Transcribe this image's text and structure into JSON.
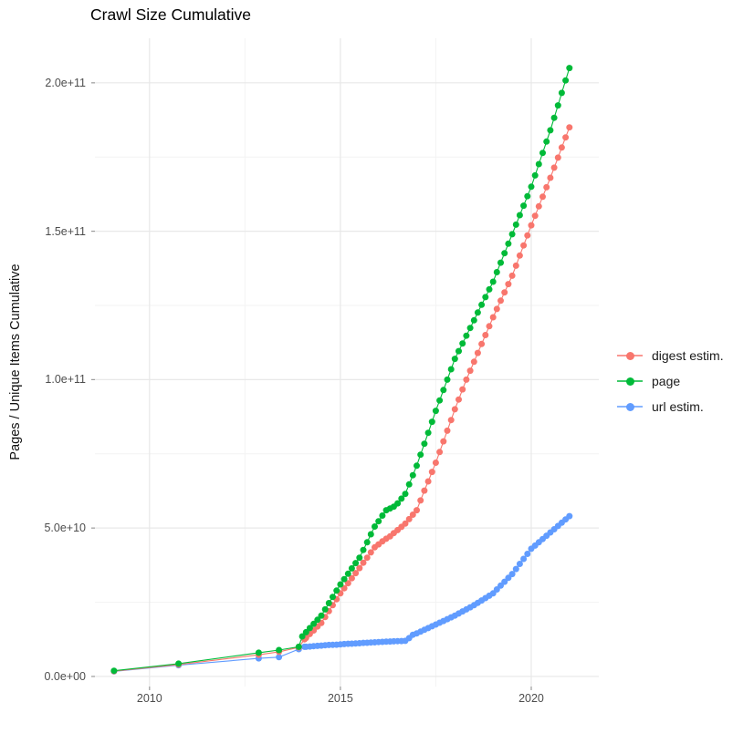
{
  "title": "Crawl Size Cumulative",
  "y_axis_label": "Pages / Unique Items Cumulative",
  "colors": {
    "digest": "#F8766D",
    "page": "#00BA38",
    "url": "#619CFF",
    "grid_major": "#e8e8e8",
    "grid_minor": "#f3f3f3",
    "tick_mark": "#9a9a9a",
    "tick_text": "#4d4d4d",
    "title_text": "#000000"
  },
  "legend": {
    "items": [
      {
        "label": "digest estim.",
        "color": "#F8766D"
      },
      {
        "label": "page",
        "color": "#00BA38"
      },
      {
        "label": "url estim.",
        "color": "#619CFF"
      }
    ]
  },
  "chart_data": {
    "type": "line",
    "title": "Crawl Size Cumulative",
    "xlabel": "",
    "ylabel": "Pages / Unique Items Cumulative",
    "legend_position": "right",
    "grid": true,
    "value_scale": 1000000000.0,
    "xlim": [
      2008.57,
      2021.77
    ],
    "ylim_e9": [
      -3.4,
      215
    ],
    "x_ticks": [
      {
        "value": 2010,
        "label": "2010"
      },
      {
        "value": 2015,
        "label": "2015"
      },
      {
        "value": 2020,
        "label": "2020"
      }
    ],
    "y_ticks": [
      {
        "value_e9": 0,
        "label": "0.0e+00"
      },
      {
        "value_e9": 50,
        "label": "5.0e+10"
      },
      {
        "value_e9": 100,
        "label": "1.0e+11"
      },
      {
        "value_e9": 150,
        "label": "1.5e+11"
      },
      {
        "value_e9": 200,
        "label": "2.0e+11"
      }
    ],
    "x_minor": [
      2012.5,
      2017.5
    ],
    "y_minor_e9": [
      25,
      75,
      125,
      175
    ],
    "series": [
      {
        "name": "digest estim.",
        "color": "#F8766D",
        "points": [
          [
            2009.07,
            1.8
          ],
          [
            2010.76,
            4
          ],
          [
            2012.86,
            7.3
          ],
          [
            2013.39,
            8.3
          ],
          [
            2013.91,
            9.8
          ],
          [
            2014.06,
            12.5
          ],
          [
            2014.1,
            13
          ],
          [
            2014.2,
            14.3
          ],
          [
            2014.3,
            15.5
          ],
          [
            2014.4,
            16.8
          ],
          [
            2014.5,
            18
          ],
          [
            2014.6,
            20
          ],
          [
            2014.7,
            22
          ],
          [
            2014.8,
            24
          ],
          [
            2014.9,
            26
          ],
          [
            2015,
            28
          ],
          [
            2015.1,
            29.7
          ],
          [
            2015.2,
            31.4
          ],
          [
            2015.3,
            33.1
          ],
          [
            2015.4,
            34.8
          ],
          [
            2015.5,
            36.5
          ],
          [
            2015.6,
            38.3
          ],
          [
            2015.7,
            40
          ],
          [
            2015.8,
            41.8
          ],
          [
            2015.9,
            43.5
          ],
          [
            2016,
            44.5
          ],
          [
            2016.1,
            45.5
          ],
          [
            2016.2,
            46.4
          ],
          [
            2016.3,
            47.2
          ],
          [
            2016.4,
            48.3
          ],
          [
            2016.5,
            49.3
          ],
          [
            2016.6,
            50.4
          ],
          [
            2016.7,
            51.5
          ],
          [
            2016.8,
            53
          ],
          [
            2016.9,
            54.5
          ],
          [
            2017,
            56
          ],
          [
            2017.1,
            59.3
          ],
          [
            2017.2,
            62.6
          ],
          [
            2017.3,
            65.7
          ],
          [
            2017.4,
            68.9
          ],
          [
            2017.5,
            72
          ],
          [
            2017.6,
            75.6
          ],
          [
            2017.7,
            79.2
          ],
          [
            2017.8,
            82.8
          ],
          [
            2017.9,
            86.4
          ],
          [
            2018,
            90
          ],
          [
            2018.1,
            93.3
          ],
          [
            2018.2,
            96.7
          ],
          [
            2018.3,
            100
          ],
          [
            2018.4,
            103
          ],
          [
            2018.5,
            106
          ],
          [
            2018.6,
            109
          ],
          [
            2018.7,
            112
          ],
          [
            2018.8,
            115
          ],
          [
            2018.9,
            118
          ],
          [
            2019,
            121
          ],
          [
            2019.1,
            123.8
          ],
          [
            2019.2,
            126.6
          ],
          [
            2019.3,
            129.4
          ],
          [
            2019.4,
            132.2
          ],
          [
            2019.5,
            135
          ],
          [
            2019.6,
            138.4
          ],
          [
            2019.7,
            141.8
          ],
          [
            2019.8,
            145.2
          ],
          [
            2019.9,
            148.6
          ],
          [
            2020,
            152
          ],
          [
            2020.1,
            155.2
          ],
          [
            2020.2,
            158.4
          ],
          [
            2020.3,
            161.6
          ],
          [
            2020.4,
            164.8
          ],
          [
            2020.5,
            168
          ],
          [
            2020.6,
            171.4
          ],
          [
            2020.7,
            174.8
          ],
          [
            2020.8,
            178.2
          ],
          [
            2020.9,
            181.6
          ],
          [
            2021,
            185
          ]
        ]
      },
      {
        "name": "page",
        "color": "#00BA38",
        "points": [
          [
            2009.07,
            1.9
          ],
          [
            2010.76,
            4.3
          ],
          [
            2012.86,
            8
          ],
          [
            2013.39,
            8.9
          ],
          [
            2013.91,
            10
          ],
          [
            2014,
            13.5
          ],
          [
            2014.1,
            14.9
          ],
          [
            2014.2,
            16.3
          ],
          [
            2014.3,
            17.7
          ],
          [
            2014.4,
            19.1
          ],
          [
            2014.5,
            20.5
          ],
          [
            2014.6,
            22.6
          ],
          [
            2014.7,
            24.7
          ],
          [
            2014.8,
            26.8
          ],
          [
            2014.9,
            28.9
          ],
          [
            2015,
            31
          ],
          [
            2015.1,
            32.8
          ],
          [
            2015.2,
            34.6
          ],
          [
            2015.3,
            36.4
          ],
          [
            2015.4,
            38.2
          ],
          [
            2015.5,
            40
          ],
          [
            2015.6,
            42.6
          ],
          [
            2015.7,
            45.2
          ],
          [
            2015.8,
            47.9
          ],
          [
            2015.9,
            50.5
          ],
          [
            2016,
            52.3
          ],
          [
            2016.1,
            54.2
          ],
          [
            2016.2,
            56
          ],
          [
            2016.3,
            56.6
          ],
          [
            2016.4,
            57.2
          ],
          [
            2016.5,
            58.3
          ],
          [
            2016.6,
            59.9
          ],
          [
            2016.7,
            61.5
          ],
          [
            2016.8,
            64.7
          ],
          [
            2016.9,
            67.8
          ],
          [
            2017,
            71
          ],
          [
            2017.1,
            74.7
          ],
          [
            2017.2,
            78.4
          ],
          [
            2017.3,
            82.1
          ],
          [
            2017.4,
            85.8
          ],
          [
            2017.5,
            89.5
          ],
          [
            2017.6,
            93
          ],
          [
            2017.7,
            96.5
          ],
          [
            2017.8,
            100
          ],
          [
            2017.9,
            103.5
          ],
          [
            2018,
            107
          ],
          [
            2018.1,
            109.6
          ],
          [
            2018.2,
            112.2
          ],
          [
            2018.3,
            114.8
          ],
          [
            2018.4,
            117.4
          ],
          [
            2018.5,
            120
          ],
          [
            2018.6,
            122.6
          ],
          [
            2018.7,
            125.2
          ],
          [
            2018.8,
            127.8
          ],
          [
            2018.9,
            130.4
          ],
          [
            2019,
            133
          ],
          [
            2019.1,
            136.2
          ],
          [
            2019.2,
            139.4
          ],
          [
            2019.3,
            142.6
          ],
          [
            2019.4,
            145.8
          ],
          [
            2019.5,
            149
          ],
          [
            2019.6,
            152.2
          ],
          [
            2019.7,
            155.4
          ],
          [
            2019.8,
            158.6
          ],
          [
            2019.9,
            161.8
          ],
          [
            2020,
            165
          ],
          [
            2020.1,
            168.8
          ],
          [
            2020.2,
            172.6
          ],
          [
            2020.3,
            176.4
          ],
          [
            2020.4,
            180.2
          ],
          [
            2020.5,
            184
          ],
          [
            2020.6,
            188.2
          ],
          [
            2020.7,
            192.4
          ],
          [
            2020.8,
            196.6
          ],
          [
            2020.9,
            200.8
          ],
          [
            2021,
            205
          ]
        ]
      },
      {
        "name": "url estim.",
        "color": "#619CFF",
        "points": [
          [
            2009.07,
            1.7
          ],
          [
            2010.76,
            3.8
          ],
          [
            2012.86,
            6.1
          ],
          [
            2013.39,
            6.5
          ],
          [
            2013.91,
            9.2
          ],
          [
            2014.06,
            10
          ],
          [
            2014.1,
            10
          ],
          [
            2014.2,
            10.1
          ],
          [
            2014.3,
            10.2
          ],
          [
            2014.4,
            10.3
          ],
          [
            2014.5,
            10.4
          ],
          [
            2014.6,
            10.5
          ],
          [
            2014.7,
            10.6
          ],
          [
            2014.8,
            10.65
          ],
          [
            2014.9,
            10.7
          ],
          [
            2015,
            10.8
          ],
          [
            2015.1,
            10.9
          ],
          [
            2015.2,
            11
          ],
          [
            2015.3,
            11.05
          ],
          [
            2015.4,
            11.1
          ],
          [
            2015.5,
            11.2
          ],
          [
            2015.6,
            11.3
          ],
          [
            2015.7,
            11.35
          ],
          [
            2015.8,
            11.45
          ],
          [
            2015.9,
            11.5
          ],
          [
            2016,
            11.6
          ],
          [
            2016.1,
            11.66
          ],
          [
            2016.2,
            11.72
          ],
          [
            2016.3,
            11.78
          ],
          [
            2016.4,
            11.84
          ],
          [
            2016.5,
            11.9
          ],
          [
            2016.6,
            11.94
          ],
          [
            2016.7,
            11.98
          ],
          [
            2016.8,
            12.9
          ],
          [
            2016.9,
            14.05
          ],
          [
            2017,
            14.5
          ],
          [
            2017.1,
            15.1
          ],
          [
            2017.2,
            15.7
          ],
          [
            2017.3,
            16.3
          ],
          [
            2017.4,
            16.9
          ],
          [
            2017.5,
            17.5
          ],
          [
            2017.6,
            18.1
          ],
          [
            2017.7,
            18.7
          ],
          [
            2017.8,
            19.3
          ],
          [
            2017.9,
            19.9
          ],
          [
            2018,
            20.5
          ],
          [
            2018.1,
            21.2
          ],
          [
            2018.2,
            21.9
          ],
          [
            2018.3,
            22.6
          ],
          [
            2018.4,
            23.3
          ],
          [
            2018.5,
            24
          ],
          [
            2018.6,
            24.8
          ],
          [
            2018.7,
            25.6
          ],
          [
            2018.8,
            26.4
          ],
          [
            2018.9,
            27.2
          ],
          [
            2019,
            28
          ],
          [
            2019.1,
            29.3
          ],
          [
            2019.2,
            30.6
          ],
          [
            2019.3,
            31.9
          ],
          [
            2019.4,
            33.2
          ],
          [
            2019.5,
            34.5
          ],
          [
            2019.6,
            36.2
          ],
          [
            2019.7,
            37.9
          ],
          [
            2019.8,
            39.6
          ],
          [
            2019.9,
            41.3
          ],
          [
            2020,
            43
          ],
          [
            2020.1,
            44.1
          ],
          [
            2020.2,
            45.2
          ],
          [
            2020.3,
            46.3
          ],
          [
            2020.4,
            47.4
          ],
          [
            2020.5,
            48.5
          ],
          [
            2020.6,
            49.6
          ],
          [
            2020.7,
            50.7
          ],
          [
            2020.8,
            51.8
          ],
          [
            2020.9,
            52.9
          ],
          [
            2021,
            54
          ]
        ]
      }
    ]
  }
}
